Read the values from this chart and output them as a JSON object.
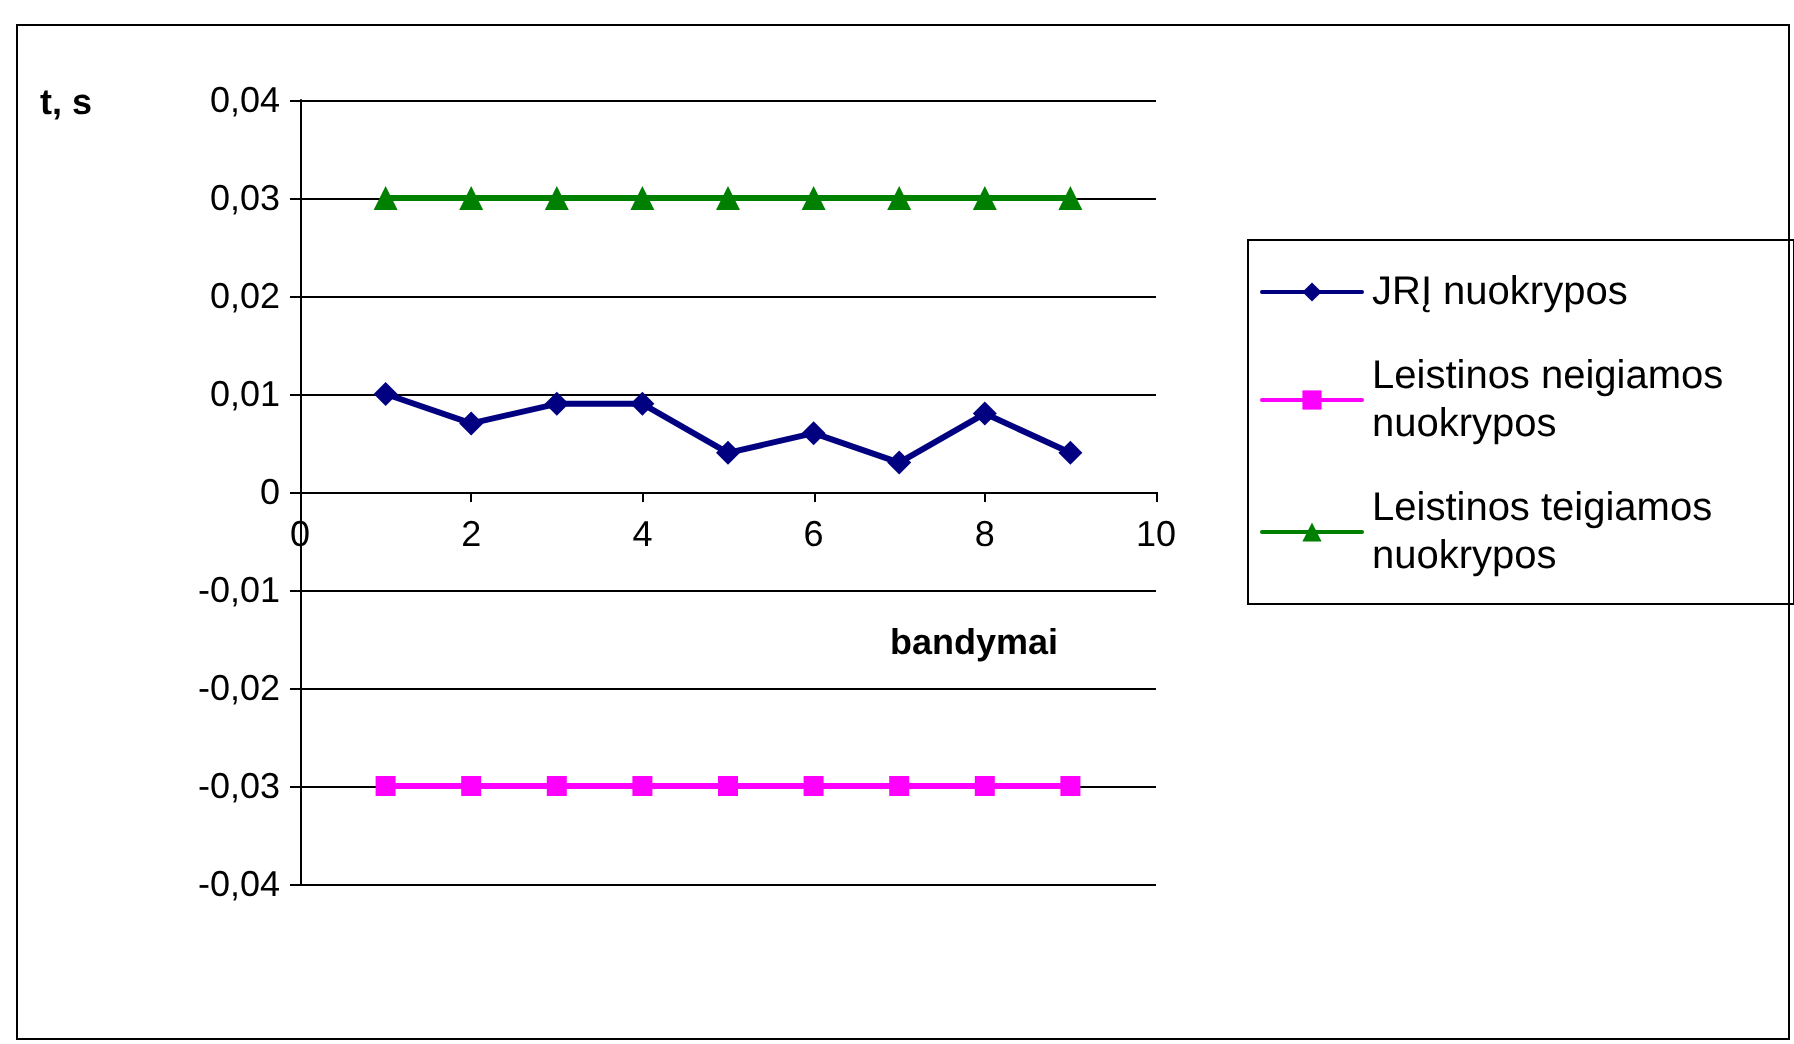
{
  "chart_data": {
    "type": "line",
    "xlabel": "bandymai",
    "ylabel": "t, s",
    "x": [
      1,
      2,
      3,
      4,
      5,
      6,
      7,
      8,
      9
    ],
    "series": [
      {
        "name": "JRĮ nuokrypos",
        "color": "#000080",
        "marker": "diamond",
        "values": [
          0.01,
          0.007,
          0.009,
          0.009,
          0.004,
          0.006,
          0.003,
          0.008,
          0.004
        ]
      },
      {
        "name": "Leistinos neigiamos nuokrypos",
        "color": "#ff00ff",
        "marker": "square",
        "values": [
          -0.03,
          -0.03,
          -0.03,
          -0.03,
          -0.03,
          -0.03,
          -0.03,
          -0.03,
          -0.03
        ]
      },
      {
        "name": "Leistinos teigiamos nuokrypos",
        "color": "#008000",
        "marker": "triangle",
        "values": [
          0.03,
          0.03,
          0.03,
          0.03,
          0.03,
          0.03,
          0.03,
          0.03,
          0.03
        ]
      }
    ],
    "xlim": [
      0,
      10
    ],
    "xticks": [
      0,
      2,
      4,
      6,
      8,
      10
    ],
    "ylim": [
      -0.04,
      0.04
    ],
    "yticks": [
      {
        "value": -0.04,
        "label": "-0,04"
      },
      {
        "value": -0.03,
        "label": "-0,03"
      },
      {
        "value": -0.02,
        "label": "-0,02"
      },
      {
        "value": -0.01,
        "label": "-0,01"
      },
      {
        "value": 0,
        "label": "0"
      },
      {
        "value": 0.01,
        "label": "0,01"
      },
      {
        "value": 0.02,
        "label": "0,02"
      },
      {
        "value": 0.03,
        "label": "0,03"
      },
      {
        "value": 0.04,
        "label": "0,04"
      }
    ],
    "grid": "y",
    "legend": "right",
    "line_style": "solid"
  }
}
